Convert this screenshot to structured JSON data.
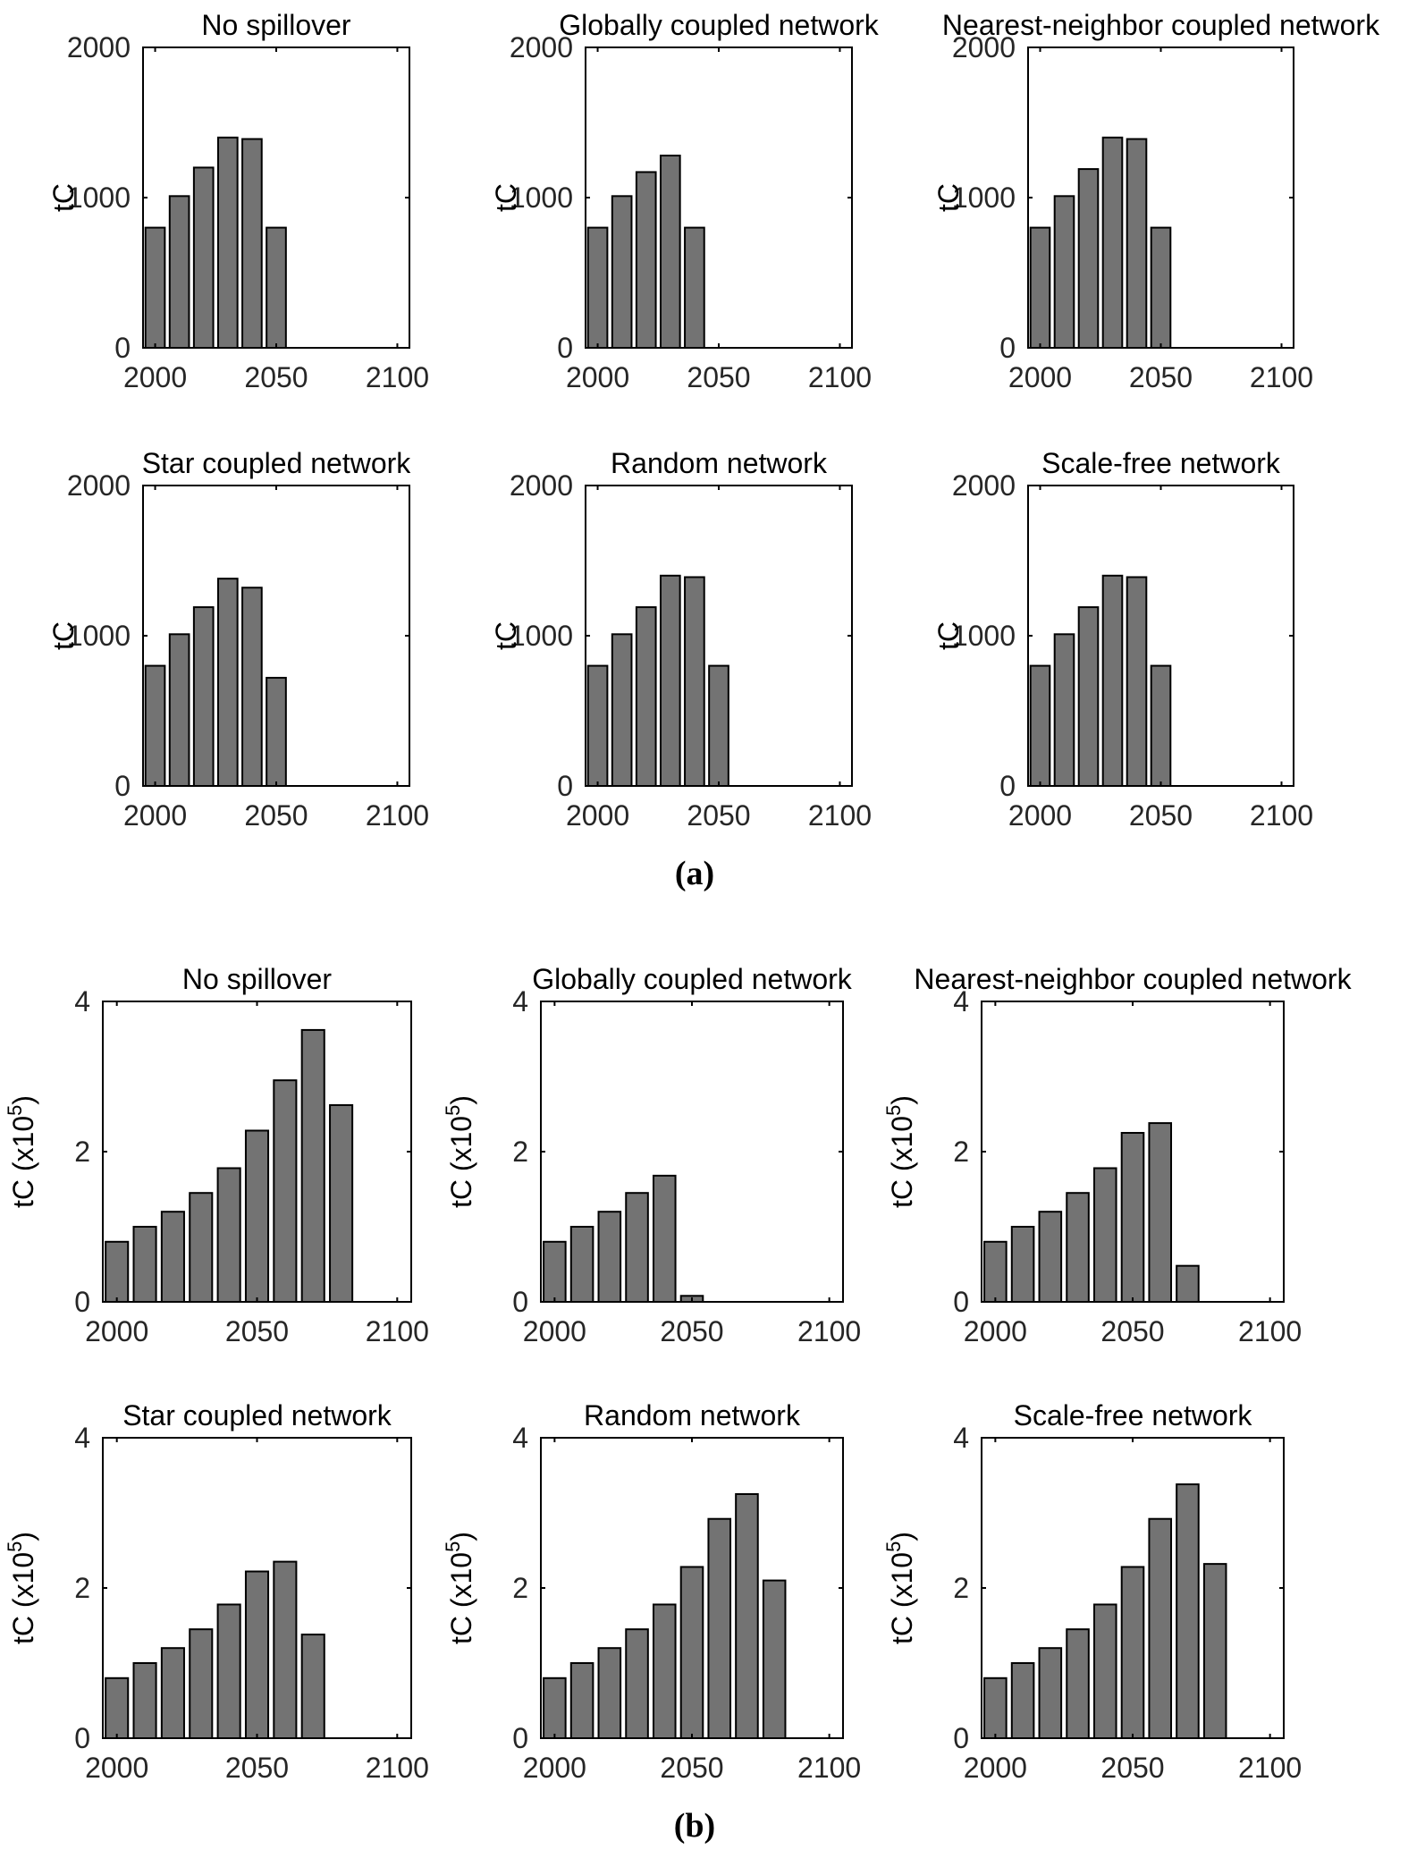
{
  "panels": {
    "a": {
      "label": "(a)",
      "charts": [
        {
          "type": "bar",
          "title": "No spillover",
          "ylabel": "tC",
          "xlim": [
            1995,
            2105
          ],
          "ylim": [
            0,
            2000
          ],
          "xticks": [
            "2000",
            "2050",
            "2100"
          ],
          "yticks": [
            "0",
            "1000",
            "2000"
          ],
          "x": [
            2000,
            2010,
            2020,
            2030,
            2040,
            2050
          ],
          "values": [
            800,
            1010,
            1200,
            1400,
            1390,
            800
          ]
        },
        {
          "type": "bar",
          "title": "Globally coupled network",
          "ylabel": "tC",
          "xlim": [
            1995,
            2105
          ],
          "ylim": [
            0,
            2000
          ],
          "xticks": [
            "2000",
            "2050",
            "2100"
          ],
          "yticks": [
            "0",
            "1000",
            "2000"
          ],
          "x": [
            2000,
            2010,
            2020,
            2030,
            2040
          ],
          "values": [
            800,
            1010,
            1170,
            1280,
            800
          ]
        },
        {
          "type": "bar",
          "title": "Nearest-neighbor coupled network",
          "ylabel": "tC",
          "xlim": [
            1995,
            2105
          ],
          "ylim": [
            0,
            2000
          ],
          "xticks": [
            "2000",
            "2050",
            "2100"
          ],
          "yticks": [
            "0",
            "1000",
            "2000"
          ],
          "x": [
            2000,
            2010,
            2020,
            2030,
            2040,
            2050
          ],
          "values": [
            800,
            1010,
            1190,
            1400,
            1390,
            800
          ]
        },
        {
          "type": "bar",
          "title": "Star coupled network",
          "ylabel": "tC",
          "xlim": [
            1995,
            2105
          ],
          "ylim": [
            0,
            2000
          ],
          "xticks": [
            "2000",
            "2050",
            "2100"
          ],
          "yticks": [
            "0",
            "1000",
            "2000"
          ],
          "x": [
            2000,
            2010,
            2020,
            2030,
            2040,
            2050
          ],
          "values": [
            800,
            1010,
            1190,
            1380,
            1320,
            720
          ]
        },
        {
          "type": "bar",
          "title": "Random network",
          "ylabel": "tC",
          "xlim": [
            1995,
            2105
          ],
          "ylim": [
            0,
            2000
          ],
          "xticks": [
            "2000",
            "2050",
            "2100"
          ],
          "yticks": [
            "0",
            "1000",
            "2000"
          ],
          "x": [
            2000,
            2010,
            2020,
            2030,
            2040,
            2050
          ],
          "values": [
            800,
            1010,
            1190,
            1400,
            1390,
            800
          ]
        },
        {
          "type": "bar",
          "title": "Scale-free network",
          "ylabel": "tC",
          "xlim": [
            1995,
            2105
          ],
          "ylim": [
            0,
            2000
          ],
          "xticks": [
            "2000",
            "2050",
            "2100"
          ],
          "yticks": [
            "0",
            "1000",
            "2000"
          ],
          "x": [
            2000,
            2010,
            2020,
            2030,
            2040,
            2050
          ],
          "values": [
            800,
            1010,
            1190,
            1400,
            1390,
            800
          ]
        }
      ]
    },
    "b": {
      "label": "(b)",
      "charts": [
        {
          "type": "bar",
          "title": "No spillover",
          "ylabel": "tC (x10",
          "ylabel_exp": "5",
          "ylabel_close": ")",
          "xlim": [
            1995,
            2105
          ],
          "ylim": [
            0,
            4
          ],
          "xticks": [
            "2000",
            "2050",
            "2100"
          ],
          "yticks": [
            "0",
            "2",
            "4"
          ],
          "x": [
            2000,
            2010,
            2020,
            2030,
            2040,
            2050,
            2060,
            2070,
            2080
          ],
          "values": [
            0.8,
            1.0,
            1.2,
            1.45,
            1.78,
            2.28,
            2.95,
            3.62,
            2.62
          ]
        },
        {
          "type": "bar",
          "title": "Globally coupled network",
          "ylabel": "tC (x10",
          "ylabel_exp": "5",
          "ylabel_close": ")",
          "xlim": [
            1995,
            2105
          ],
          "ylim": [
            0,
            4
          ],
          "xticks": [
            "2000",
            "2050",
            "2100"
          ],
          "yticks": [
            "0",
            "2",
            "4"
          ],
          "x": [
            2000,
            2010,
            2020,
            2030,
            2040,
            2050
          ],
          "values": [
            0.8,
            1.0,
            1.2,
            1.45,
            1.68,
            0.08
          ]
        },
        {
          "type": "bar",
          "title": "Nearest-neighbor coupled network",
          "ylabel": "tC (x10",
          "ylabel_exp": "5",
          "ylabel_close": ")",
          "xlim": [
            1995,
            2105
          ],
          "ylim": [
            0,
            4
          ],
          "xticks": [
            "2000",
            "2050",
            "2100"
          ],
          "yticks": [
            "0",
            "2",
            "4"
          ],
          "x": [
            2000,
            2010,
            2020,
            2030,
            2040,
            2050,
            2060,
            2070
          ],
          "values": [
            0.8,
            1.0,
            1.2,
            1.45,
            1.78,
            2.25,
            2.38,
            0.48
          ]
        },
        {
          "type": "bar",
          "title": "Star coupled network",
          "ylabel": "tC (x10",
          "ylabel_exp": "5",
          "ylabel_close": ")",
          "xlim": [
            1995,
            2105
          ],
          "ylim": [
            0,
            4
          ],
          "xticks": [
            "2000",
            "2050",
            "2100"
          ],
          "yticks": [
            "0",
            "2",
            "4"
          ],
          "x": [
            2000,
            2010,
            2020,
            2030,
            2040,
            2050,
            2060,
            2070
          ],
          "values": [
            0.8,
            1.0,
            1.2,
            1.45,
            1.78,
            2.22,
            2.35,
            1.38
          ]
        },
        {
          "type": "bar",
          "title": "Random network",
          "ylabel": "tC (x10",
          "ylabel_exp": "5",
          "ylabel_close": ")",
          "xlim": [
            1995,
            2105
          ],
          "ylim": [
            0,
            4
          ],
          "xticks": [
            "2000",
            "2050",
            "2100"
          ],
          "yticks": [
            "0",
            "2",
            "4"
          ],
          "x": [
            2000,
            2010,
            2020,
            2030,
            2040,
            2050,
            2060,
            2070,
            2080
          ],
          "values": [
            0.8,
            1.0,
            1.2,
            1.45,
            1.78,
            2.28,
            2.92,
            3.25,
            2.1
          ]
        },
        {
          "type": "bar",
          "title": "Scale-free network",
          "ylabel": "tC (x10",
          "ylabel_exp": "5",
          "ylabel_close": ")",
          "xlim": [
            1995,
            2105
          ],
          "ylim": [
            0,
            4
          ],
          "xticks": [
            "2000",
            "2050",
            "2100"
          ],
          "yticks": [
            "0",
            "2",
            "4"
          ],
          "x": [
            2000,
            2010,
            2020,
            2030,
            2040,
            2050,
            2060,
            2070,
            2080
          ],
          "values": [
            0.8,
            1.0,
            1.2,
            1.45,
            1.78,
            2.28,
            2.92,
            3.38,
            2.32
          ]
        }
      ]
    }
  },
  "style": {
    "bar_fill": "#737373",
    "bar_stroke": "#000000",
    "axis_color": "#000000",
    "text_color": "#262626"
  }
}
